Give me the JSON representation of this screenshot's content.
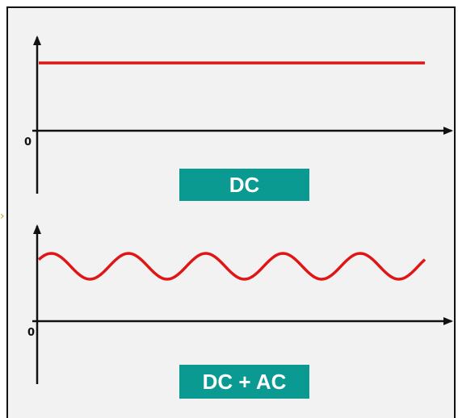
{
  "colors": {
    "background": "#f2f2f2",
    "frame": "#111111",
    "signal": "#e01515",
    "label_box": "#0a9a92",
    "label_text": "#ffffff"
  },
  "panels": [
    {
      "name": "dc",
      "zero_label": "0",
      "caption": "DC",
      "signal": {
        "shape": "constant"
      }
    },
    {
      "name": "dc-plus-ac",
      "zero_label": "0",
      "caption": "DC + AC",
      "signal": {
        "shape": "sine",
        "cycles": 5
      }
    }
  ],
  "side_mark": "›"
}
